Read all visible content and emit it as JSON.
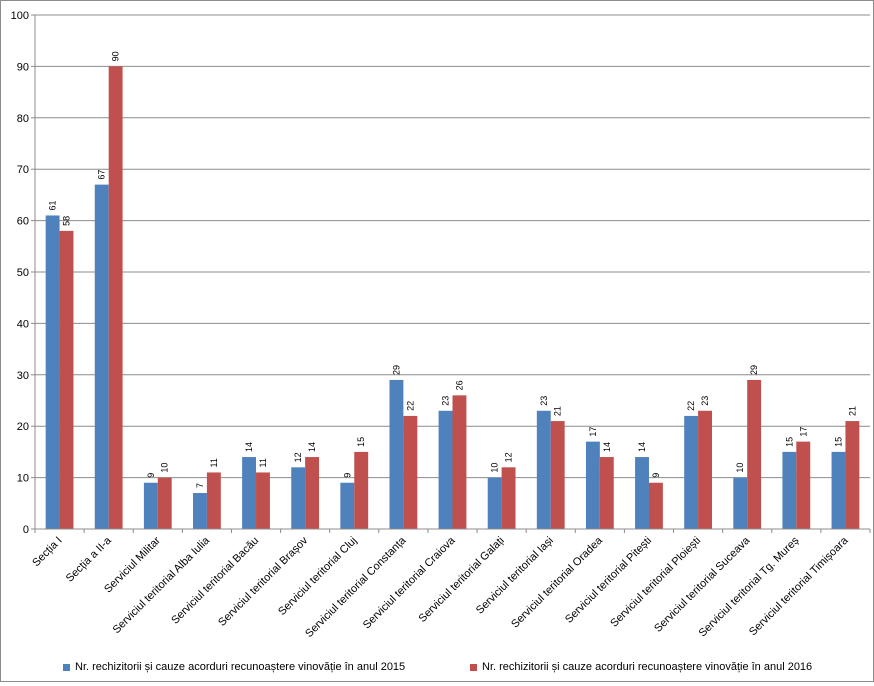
{
  "chart_data": {
    "type": "bar",
    "categories": [
      "Secția I",
      "Secția a II-a",
      "Serviciul Militar",
      "Serviciul teritorial Alba Iulia",
      "Serviciul teritorial Bacău",
      "Serviciul teritorial Brașov",
      "Serviciul teritorial Cluj",
      "Serviciul teritorial Constanța",
      "Serviciul teritorial Craiova",
      "Serviciul teritorial Galați",
      "Serviciul teritorial Iași",
      "Serviciul teritorial Oradea",
      "Serviciul teritorial Pitești",
      "Serviciul teritorial Ploiești",
      "Serviciul teritorial Suceava",
      "Serviciul teritorial Tg. Mureș",
      "Serviciul teritorial Timișoara"
    ],
    "series": [
      {
        "name": "Nr. rechizitorii și cauze acorduri recunoaștere vinovăție în anul 2015",
        "color": "#4f81bd",
        "values": [
          61,
          67,
          9,
          7,
          14,
          12,
          9,
          29,
          23,
          10,
          23,
          17,
          14,
          22,
          10,
          15,
          15
        ]
      },
      {
        "name": "Nr. rechizitorii și cauze acorduri recunoaștere vinovăție în anul 2016",
        "color": "#c0504d",
        "values": [
          58,
          90,
          10,
          11,
          11,
          14,
          15,
          22,
          26,
          12,
          21,
          14,
          9,
          23,
          29,
          17,
          21
        ]
      }
    ],
    "yticks": [
      0,
      10,
      20,
      30,
      40,
      50,
      60,
      70,
      80,
      90,
      100
    ],
    "ylim": [
      0,
      100
    ],
    "grid": true,
    "legend_position": "bottom",
    "title": "",
    "xlabel": "",
    "ylabel": ""
  }
}
